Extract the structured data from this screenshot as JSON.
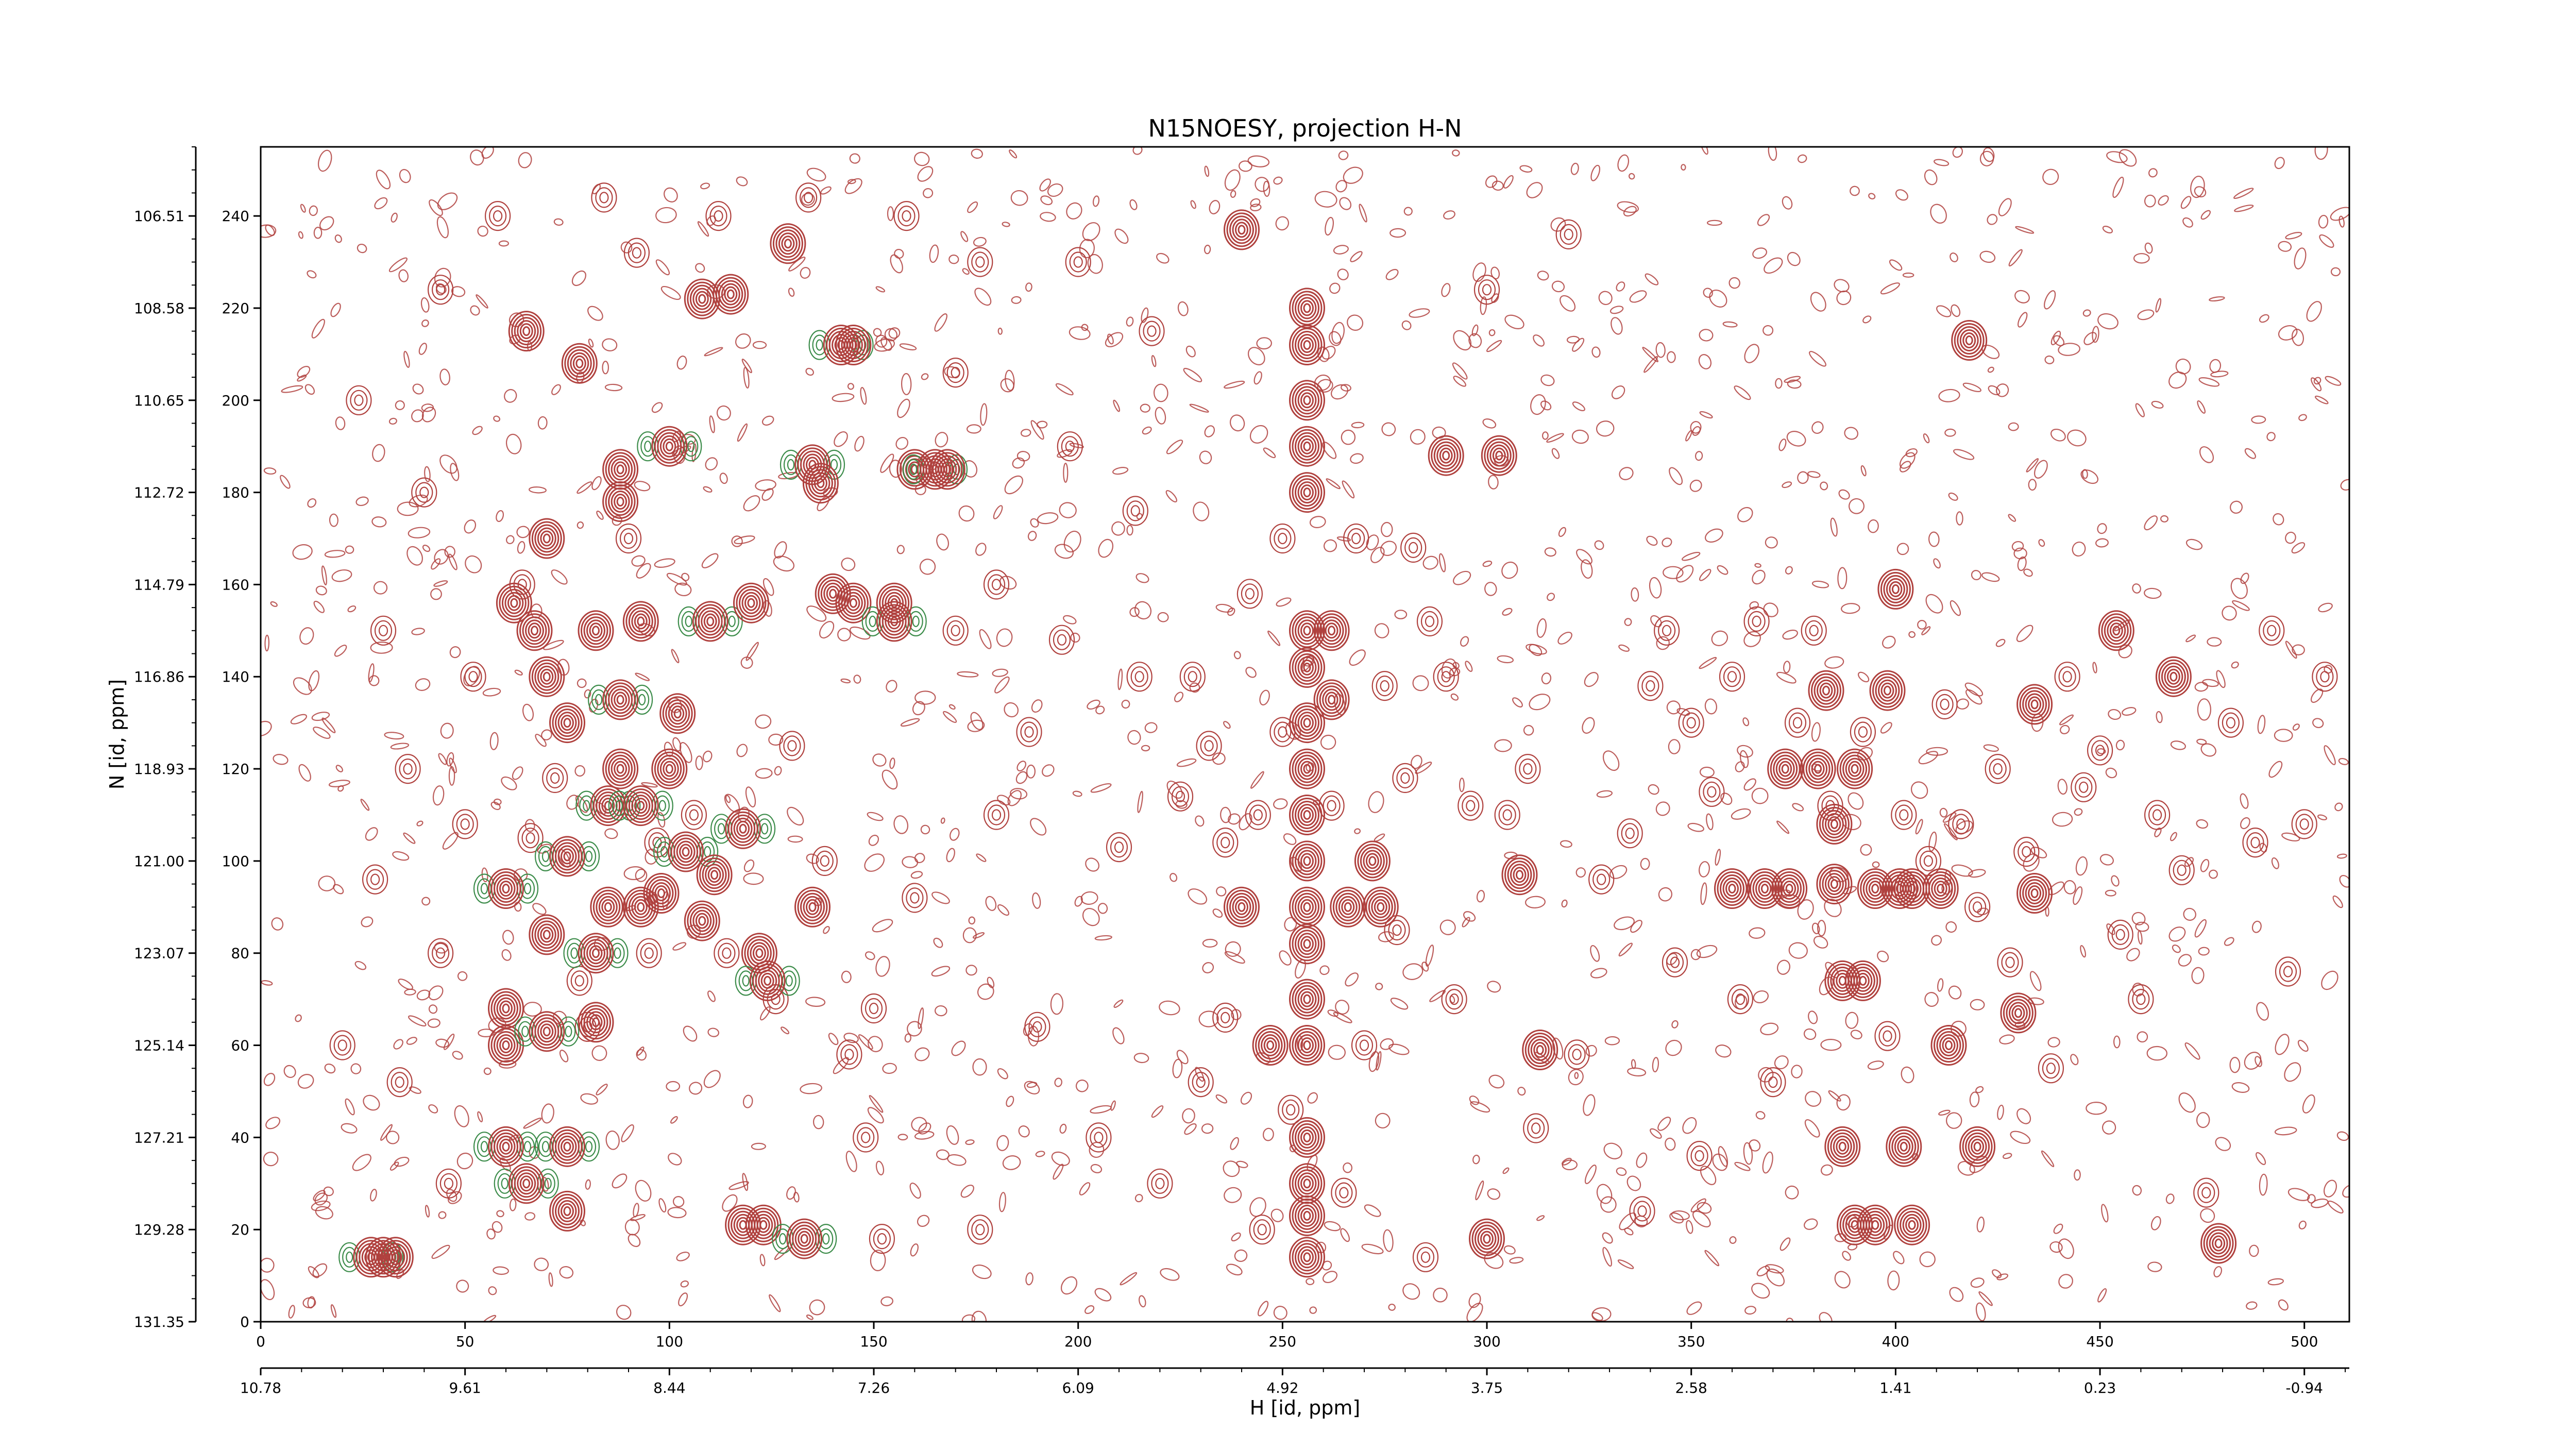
{
  "chart_data": {
    "type": "contour",
    "title": "N15NOESY, projection H-N",
    "xlabel": "H [id, ppm]",
    "ylabel": "N [id, ppm]",
    "x_index_range": [
      0,
      511
    ],
    "y_index_range": [
      0,
      255
    ],
    "x_index_ticks": [
      "0",
      "50",
      "100",
      "150",
      "200",
      "250",
      "300",
      "350",
      "400",
      "450",
      "500"
    ],
    "x_ppm_ticks": [
      "10.78",
      "9.61",
      "8.44",
      "7.26",
      "6.09",
      "4.92",
      "3.75",
      "2.58",
      "1.41",
      "0.23",
      "-0.94"
    ],
    "y_index_ticks": [
      "0",
      "20",
      "40",
      "60",
      "80",
      "100",
      "120",
      "140",
      "160",
      "180",
      "200",
      "220",
      "240"
    ],
    "y_ppm_ticks": [
      "131.35",
      "129.28",
      "127.21",
      "125.14",
      "123.07",
      "121.00",
      "118.93",
      "116.86",
      "114.79",
      "112.72",
      "110.65",
      "108.58",
      "106.51"
    ],
    "colors": {
      "positive": "#b0413e",
      "negative": "#3c8c4a"
    },
    "strong_peaks": [
      [
        27,
        14
      ],
      [
        30,
        14
      ],
      [
        33,
        14
      ],
      [
        60,
        38
      ],
      [
        60,
        60
      ],
      [
        60,
        68
      ],
      [
        60,
        94
      ],
      [
        62,
        156
      ],
      [
        65,
        215
      ],
      [
        65,
        30
      ],
      [
        67,
        150
      ],
      [
        70,
        84
      ],
      [
        70,
        63
      ],
      [
        70,
        170
      ],
      [
        70,
        140
      ],
      [
        75,
        38
      ],
      [
        75,
        24
      ],
      [
        75,
        130
      ],
      [
        75,
        101
      ],
      [
        78,
        208
      ],
      [
        82,
        150
      ],
      [
        82,
        80
      ],
      [
        82,
        65
      ],
      [
        85,
        90
      ],
      [
        85,
        112
      ],
      [
        88,
        185
      ],
      [
        88,
        178
      ],
      [
        88,
        135
      ],
      [
        88,
        120
      ],
      [
        93,
        90
      ],
      [
        93,
        112
      ],
      [
        93,
        152
      ],
      [
        98,
        93
      ],
      [
        100,
        190
      ],
      [
        100,
        120
      ],
      [
        102,
        132
      ],
      [
        104,
        102
      ],
      [
        108,
        87
      ],
      [
        108,
        222
      ],
      [
        110,
        152
      ],
      [
        111,
        97
      ],
      [
        115,
        223
      ],
      [
        118,
        107
      ],
      [
        120,
        156
      ],
      [
        122,
        80
      ],
      [
        124,
        74
      ],
      [
        118,
        21
      ],
      [
        123,
        21
      ],
      [
        133,
        18
      ],
      [
        129,
        234
      ],
      [
        135,
        90
      ],
      [
        135,
        186
      ],
      [
        137,
        182
      ],
      [
        140,
        158
      ],
      [
        142,
        212
      ],
      [
        145,
        212
      ],
      [
        145,
        156
      ],
      [
        155,
        152
      ],
      [
        155,
        156
      ],
      [
        160,
        185
      ],
      [
        165,
        185
      ],
      [
        168,
        185
      ],
      [
        240,
        237
      ],
      [
        240,
        90
      ],
      [
        247,
        60
      ],
      [
        256,
        220
      ],
      [
        256,
        212
      ],
      [
        256,
        200
      ],
      [
        256,
        190
      ],
      [
        256,
        180
      ],
      [
        256,
        150
      ],
      [
        256,
        142
      ],
      [
        256,
        130
      ],
      [
        256,
        120
      ],
      [
        256,
        110
      ],
      [
        256,
        100
      ],
      [
        256,
        90
      ],
      [
        256,
        82
      ],
      [
        256,
        70
      ],
      [
        256,
        60
      ],
      [
        256,
        40
      ],
      [
        256,
        30
      ],
      [
        256,
        23
      ],
      [
        256,
        14
      ],
      [
        262,
        150
      ],
      [
        262,
        135
      ],
      [
        266,
        90
      ],
      [
        272,
        100
      ],
      [
        274,
        90
      ],
      [
        290,
        188
      ],
      [
        303,
        188
      ],
      [
        308,
        97
      ],
      [
        300,
        18
      ],
      [
        313,
        59
      ],
      [
        360,
        94
      ],
      [
        368,
        94
      ],
      [
        374,
        94
      ],
      [
        385,
        108
      ],
      [
        385,
        95
      ],
      [
        395,
        94
      ],
      [
        401,
        94
      ],
      [
        404,
        94
      ],
      [
        387,
        74
      ],
      [
        392,
        74
      ],
      [
        387,
        38
      ],
      [
        402,
        38
      ],
      [
        390,
        21
      ],
      [
        395,
        21
      ],
      [
        404,
        21
      ],
      [
        400,
        159
      ],
      [
        418,
        213
      ],
      [
        413,
        60
      ],
      [
        420,
        38
      ],
      [
        430,
        67
      ],
      [
        454,
        150
      ],
      [
        468,
        140
      ],
      [
        479,
        17
      ],
      [
        383,
        137
      ],
      [
        398,
        137
      ],
      [
        381,
        120
      ],
      [
        390,
        120
      ],
      [
        434,
        134
      ],
      [
        434,
        93
      ],
      [
        411,
        94
      ],
      [
        373,
        120
      ]
    ],
    "weak_peaks": [
      [
        64,
        160
      ],
      [
        66,
        105
      ],
      [
        72,
        118
      ],
      [
        78,
        74
      ],
      [
        80,
        64
      ],
      [
        90,
        170
      ],
      [
        95,
        80
      ],
      [
        97,
        104
      ],
      [
        106,
        110
      ],
      [
        114,
        80
      ],
      [
        126,
        70
      ],
      [
        130,
        125
      ],
      [
        138,
        100
      ],
      [
        144,
        58
      ],
      [
        148,
        40
      ],
      [
        150,
        68
      ],
      [
        152,
        18
      ],
      [
        160,
        92
      ],
      [
        170,
        150
      ],
      [
        180,
        160
      ],
      [
        210,
        103
      ],
      [
        215,
        140
      ],
      [
        218,
        215
      ],
      [
        225,
        114
      ],
      [
        228,
        140
      ],
      [
        232,
        125
      ],
      [
        236,
        104
      ],
      [
        236,
        66
      ],
      [
        242,
        158
      ],
      [
        244,
        110
      ],
      [
        250,
        170
      ],
      [
        250,
        128
      ],
      [
        262,
        112
      ],
      [
        268,
        170
      ],
      [
        270,
        60
      ],
      [
        275,
        138
      ],
      [
        278,
        85
      ],
      [
        280,
        118
      ],
      [
        282,
        168
      ],
      [
        286,
        152
      ],
      [
        290,
        140
      ],
      [
        292,
        70
      ],
      [
        296,
        112
      ],
      [
        300,
        224
      ],
      [
        305,
        110
      ],
      [
        310,
        120
      ],
      [
        320,
        236
      ],
      [
        328,
        96
      ],
      [
        335,
        106
      ],
      [
        340,
        138
      ],
      [
        344,
        150
      ],
      [
        350,
        130
      ],
      [
        355,
        115
      ],
      [
        360,
        140
      ],
      [
        362,
        70
      ],
      [
        366,
        152
      ],
      [
        370,
        52
      ],
      [
        376,
        130
      ],
      [
        380,
        150
      ],
      [
        384,
        112
      ],
      [
        392,
        128
      ],
      [
        398,
        62
      ],
      [
        402,
        110
      ],
      [
        408,
        100
      ],
      [
        412,
        134
      ],
      [
        416,
        108
      ],
      [
        420,
        90
      ],
      [
        425,
        120
      ],
      [
        428,
        78
      ],
      [
        432,
        102
      ],
      [
        438,
        55
      ],
      [
        442,
        140
      ],
      [
        446,
        116
      ],
      [
        450,
        124
      ],
      [
        455,
        84
      ],
      [
        460,
        70
      ],
      [
        464,
        110
      ],
      [
        470,
        98
      ],
      [
        476,
        28
      ],
      [
        482,
        130
      ],
      [
        488,
        104
      ],
      [
        492,
        150
      ],
      [
        496,
        76
      ],
      [
        500,
        108
      ],
      [
        505,
        140
      ],
      [
        180,
        110
      ],
      [
        190,
        64
      ],
      [
        198,
        190
      ],
      [
        205,
        40
      ],
      [
        220,
        30
      ],
      [
        230,
        52
      ],
      [
        245,
        20
      ],
      [
        252,
        46
      ],
      [
        265,
        28
      ],
      [
        285,
        14
      ],
      [
        312,
        42
      ],
      [
        322,
        58
      ],
      [
        338,
        24
      ],
      [
        346,
        78
      ],
      [
        352,
        36
      ],
      [
        176,
        20
      ],
      [
        188,
        128
      ],
      [
        196,
        148
      ],
      [
        200,
        230
      ],
      [
        214,
        176
      ],
      [
        170,
        206
      ],
      [
        176,
        230
      ],
      [
        158,
        240
      ],
      [
        134,
        244
      ],
      [
        112,
        240
      ],
      [
        92,
        232
      ],
      [
        84,
        244
      ],
      [
        58,
        240
      ],
      [
        44,
        224
      ],
      [
        40,
        180
      ],
      [
        30,
        150
      ],
      [
        36,
        120
      ],
      [
        28,
        96
      ],
      [
        44,
        80
      ],
      [
        34,
        52
      ],
      [
        46,
        30
      ],
      [
        50,
        108
      ],
      [
        52,
        140
      ],
      [
        24,
        200
      ],
      [
        20,
        60
      ]
    ]
  }
}
